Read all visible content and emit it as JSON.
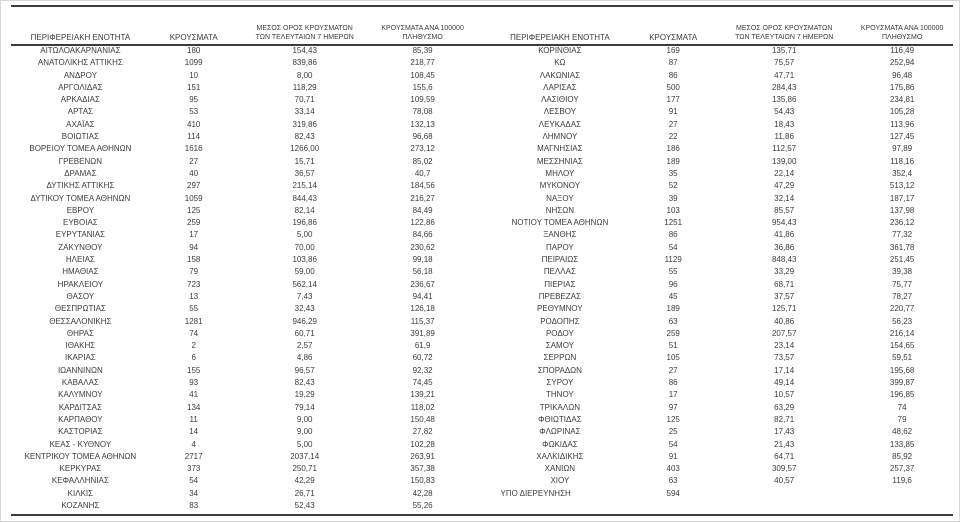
{
  "table_headers": [
    {
      "lines": [
        "ΠΕΡΙΦΕΡΕΙΑΚΗ ΕΝΟΤΗΤΑ"
      ]
    },
    {
      "lines": [
        "ΚΡΟΥΣΜΑΤΑ"
      ]
    },
    {
      "lines": [
        "ΜΕΣΟΣ ΟΡΟΣ ΚΡΟΥΣΜΑΤΩΝ",
        "ΤΩΝ ΤΕΛΕΥΤΑΙΩΝ 7 ΗΜΕΡΩΝ"
      ]
    },
    {
      "lines": [
        "ΚΡΟΥΣΜΑΤΑ ΑΝΑ 100000",
        "ΠΛΗΘΥΣΜΟ"
      ]
    }
  ],
  "left_aligned_rows": [
    "ΥΠΟ ΔΙΕΡΕΥΝΗΣΗ"
  ],
  "colors": {
    "text": "#3c3c3c",
    "rule": "#3c3c3c",
    "background": "#ffffff",
    "page_border": "#d8d8d8"
  },
  "tables": [
    {
      "name": "left",
      "rows": [
        [
          "ΑΙΤΩΛΟΑΚΑΡΝΑΝΙΑΣ",
          "180",
          "154,43",
          "85,39"
        ],
        [
          "ΑΝΑΤΟΛΙΚΗΣ ΑΤΤΙΚΗΣ",
          "1099",
          "839,86",
          "218,77"
        ],
        [
          "ΑΝΔΡΟΥ",
          "10",
          "8,00",
          "108,45"
        ],
        [
          "ΑΡΓΟΛΙΔΑΣ",
          "151",
          "118,29",
          "155,6"
        ],
        [
          "ΑΡΚΑΔΙΑΣ",
          "95",
          "70,71",
          "109,59"
        ],
        [
          "ΑΡΤΑΣ",
          "53",
          "33,14",
          "78,08"
        ],
        [
          "ΑΧΑΪΑΣ",
          "410",
          "319,86",
          "132,13"
        ],
        [
          "ΒΟΙΩΤΙΑΣ",
          "114",
          "82,43",
          "96,68"
        ],
        [
          "ΒΟΡΕΙΟΥ ΤΟΜΕΑ ΑΘΗΝΩΝ",
          "1616",
          "1266,00",
          "273,12"
        ],
        [
          "ΓΡΕΒΕΝΩΝ",
          "27",
          "15,71",
          "85,02"
        ],
        [
          "ΔΡΑΜΑΣ",
          "40",
          "36,57",
          "40,7"
        ],
        [
          "ΔΥΤΙΚΗΣ ΑΤΤΙΚΗΣ",
          "297",
          "215,14",
          "184,56"
        ],
        [
          "ΔΥΤΙΚΟΥ ΤΟΜΕΑ ΑΘΗΝΩΝ",
          "1059",
          "844,43",
          "216,27"
        ],
        [
          "ΕΒΡΟΥ",
          "125",
          "82,14",
          "84,49"
        ],
        [
          "ΕΥΒΟΙΑΣ",
          "259",
          "196,86",
          "122,86"
        ],
        [
          "ΕΥΡΥΤΑΝΙΑΣ",
          "17",
          "5,00",
          "84,66"
        ],
        [
          "ΖΑΚΥΝΘΟΥ",
          "94",
          "70,00",
          "230,62"
        ],
        [
          "ΗΛΕΙΑΣ",
          "158",
          "103,86",
          "99,18"
        ],
        [
          "ΗΜΑΘΙΑΣ",
          "79",
          "59,00",
          "56,18"
        ],
        [
          "ΗΡΑΚΛΕΙΟΥ",
          "723",
          "562,14",
          "236,67"
        ],
        [
          "ΘΑΣΟΥ",
          "13",
          "7,43",
          "94,41"
        ],
        [
          "ΘΕΣΠΡΩΤΙΑΣ",
          "55",
          "32,43",
          "126,18"
        ],
        [
          "ΘΕΣΣΑΛΟΝΙΚΗΣ",
          "1281",
          "946,29",
          "115,37"
        ],
        [
          "ΘΗΡΑΣ",
          "74",
          "60,71",
          "391,89"
        ],
        [
          "ΙΘΑΚΗΣ",
          "2",
          "2,57",
          "61,9"
        ],
        [
          "ΙΚΑΡΙΑΣ",
          "6",
          "4,86",
          "60,72"
        ],
        [
          "ΙΩΑΝΝΙΝΩΝ",
          "155",
          "96,57",
          "92,32"
        ],
        [
          "ΚΑΒΑΛΑΣ",
          "93",
          "82,43",
          "74,45"
        ],
        [
          "ΚΑΛΥΜΝΟΥ",
          "41",
          "19,29",
          "139,21"
        ],
        [
          "ΚΑΡΔΙΤΣΑΣ",
          "134",
          "79,14",
          "118,02"
        ],
        [
          "ΚΑΡΠΑΘΟΥ",
          "11",
          "9,00",
          "150,48"
        ],
        [
          "ΚΑΣΤΟΡΙΑΣ",
          "14",
          "9,00",
          "27,82"
        ],
        [
          "ΚΕΑΣ - ΚΥΘΝΟΥ",
          "4",
          "5,00",
          "102,28"
        ],
        [
          "ΚΕΝΤΡΙΚΟΥ ΤΟΜΕΑ ΑΘΗΝΩΝ",
          "2717",
          "2037,14",
          "263,91"
        ],
        [
          "ΚΕΡΚΥΡΑΣ",
          "373",
          "250,71",
          "357,38"
        ],
        [
          "ΚΕΦΑΛΛΗΝΙΑΣ",
          "54",
          "42,29",
          "150,83"
        ],
        [
          "ΚΙΛΚΙΣ",
          "34",
          "26,71",
          "42,28"
        ],
        [
          "ΚΟΖΑΝΗΣ",
          "83",
          "52,43",
          "55,26"
        ]
      ]
    },
    {
      "name": "right",
      "rows": [
        [
          "ΚΟΡΙΝΘΙΑΣ",
          "169",
          "135,71",
          "116,49"
        ],
        [
          "ΚΩ",
          "87",
          "75,57",
          "252,94"
        ],
        [
          "ΛΑΚΩΝΙΑΣ",
          "86",
          "47,71",
          "96,48"
        ],
        [
          "ΛΑΡΙΣΑΣ",
          "500",
          "284,43",
          "175,86"
        ],
        [
          "ΛΑΣΙΘΙΟΥ",
          "177",
          "135,86",
          "234,81"
        ],
        [
          "ΛΕΣΒΟΥ",
          "91",
          "54,43",
          "105,28"
        ],
        [
          "ΛΕΥΚΑΔΑΣ",
          "27",
          "18,43",
          "113,96"
        ],
        [
          "ΛΗΜΝΟΥ",
          "22",
          "11,86",
          "127,45"
        ],
        [
          "ΜΑΓΝΗΣΙΑΣ",
          "186",
          "112,57",
          "97,89"
        ],
        [
          "ΜΕΣΣΗΝΙΑΣ",
          "189",
          "139,00",
          "118,16"
        ],
        [
          "ΜΗΛΟΥ",
          "35",
          "22,14",
          "352,4"
        ],
        [
          "ΜΥΚΟΝΟΥ",
          "52",
          "47,29",
          "513,12"
        ],
        [
          "ΝΑΞΟΥ",
          "39",
          "32,14",
          "187,17"
        ],
        [
          "ΝΗΣΩΝ",
          "103",
          "85,57",
          "137,98"
        ],
        [
          "ΝΟΤΙΟΥ ΤΟΜΕΑ ΑΘΗΝΩΝ",
          "1251",
          "954,43",
          "236,12"
        ],
        [
          "ΞΑΝΘΗΣ",
          "86",
          "41,86",
          "77,32"
        ],
        [
          "ΠΑΡΟΥ",
          "54",
          "36,86",
          "361,78"
        ],
        [
          "ΠΕΙΡΑΙΩΣ",
          "1129",
          "848,43",
          "251,45"
        ],
        [
          "ΠΕΛΛΑΣ",
          "55",
          "33,29",
          "39,38"
        ],
        [
          "ΠΙΕΡΙΑΣ",
          "96",
          "68,71",
          "75,77"
        ],
        [
          "ΠΡΕΒΕΖΑΣ",
          "45",
          "37,57",
          "78,27"
        ],
        [
          "ΡΕΘΥΜΝΟΥ",
          "189",
          "125,71",
          "220,77"
        ],
        [
          "ΡΟΔΟΠΗΣ",
          "63",
          "40,86",
          "56,23"
        ],
        [
          "ΡΟΔΟΥ",
          "259",
          "207,57",
          "216,14"
        ],
        [
          "ΣΑΜΟΥ",
          "51",
          "23,14",
          "154,65"
        ],
        [
          "ΣΕΡΡΩΝ",
          "105",
          "73,57",
          "59,51"
        ],
        [
          "ΣΠΟΡΑΔΩΝ",
          "27",
          "17,14",
          "195,68"
        ],
        [
          "ΣΥΡΟΥ",
          "86",
          "49,14",
          "399,87"
        ],
        [
          "ΤΗΝΟΥ",
          "17",
          "10,57",
          "196,85"
        ],
        [
          "ΤΡΙΚΑΛΩΝ",
          "97",
          "63,29",
          "74"
        ],
        [
          "ΦΘΙΩΤΙΔΑΣ",
          "125",
          "82,71",
          "79"
        ],
        [
          "ΦΛΩΡΙΝΑΣ",
          "25",
          "17,43",
          "48,62"
        ],
        [
          "ΦΩΚΙΔΑΣ",
          "54",
          "21,43",
          "133,85"
        ],
        [
          "ΧΑΛΚΙΔΙΚΗΣ",
          "91",
          "64,71",
          "85,92"
        ],
        [
          "ΧΑΝΙΩΝ",
          "403",
          "309,57",
          "257,37"
        ],
        [
          "ΧΙΟΥ",
          "63",
          "40,57",
          "119,6"
        ],
        [
          "ΥΠΟ ΔΙΕΡΕΥΝΗΣΗ",
          "594",
          "",
          ""
        ]
      ]
    }
  ]
}
